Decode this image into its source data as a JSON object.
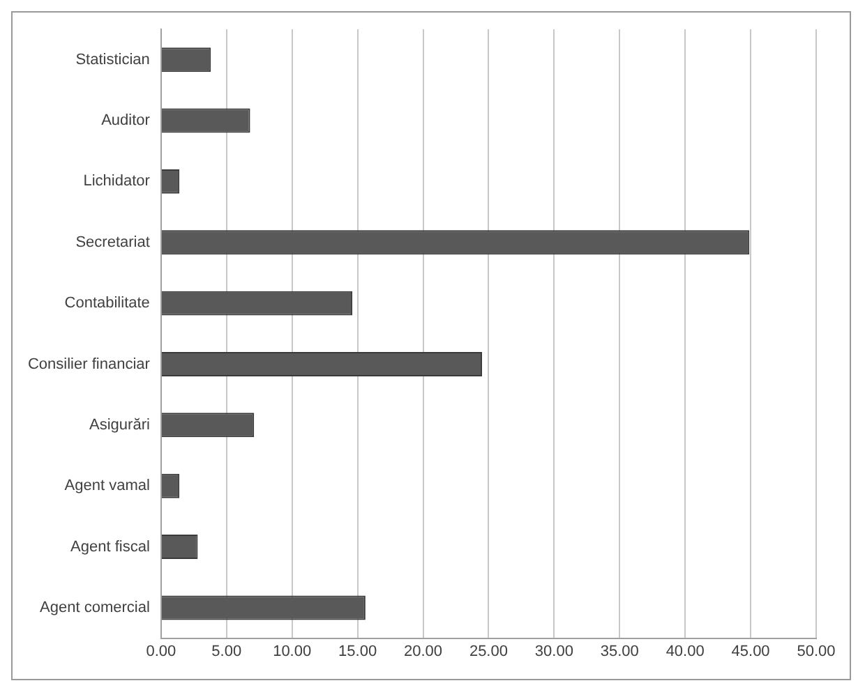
{
  "chart_data": {
    "type": "bar",
    "orientation": "horizontal",
    "categories": [
      "Statistician",
      "Auditor",
      "Lichidator",
      "Secretariat",
      "Contabilitate",
      "Consilier financiar",
      "Asigurări",
      "Agent vamal",
      "Agent fiscal",
      "Agent comercial"
    ],
    "values": [
      3.8,
      6.8,
      1.4,
      44.9,
      14.6,
      24.5,
      7.1,
      1.4,
      2.8,
      15.6
    ],
    "color": "#595959",
    "xlim": [
      0,
      50
    ],
    "xticks": [
      {
        "value": 0,
        "label": "0.00"
      },
      {
        "value": 5,
        "label": "5.00"
      },
      {
        "value": 10,
        "label": "10.00"
      },
      {
        "value": 15,
        "label": "15.00"
      },
      {
        "value": 20,
        "label": "20.00"
      },
      {
        "value": 25,
        "label": "25.00"
      },
      {
        "value": 30,
        "label": "30.00"
      },
      {
        "value": 35,
        "label": "35.00"
      },
      {
        "value": 40,
        "label": "40.00"
      },
      {
        "value": 45,
        "label": "45.00"
      },
      {
        "value": 50,
        "label": "50.00"
      }
    ],
    "grid": "x",
    "legend": false
  }
}
